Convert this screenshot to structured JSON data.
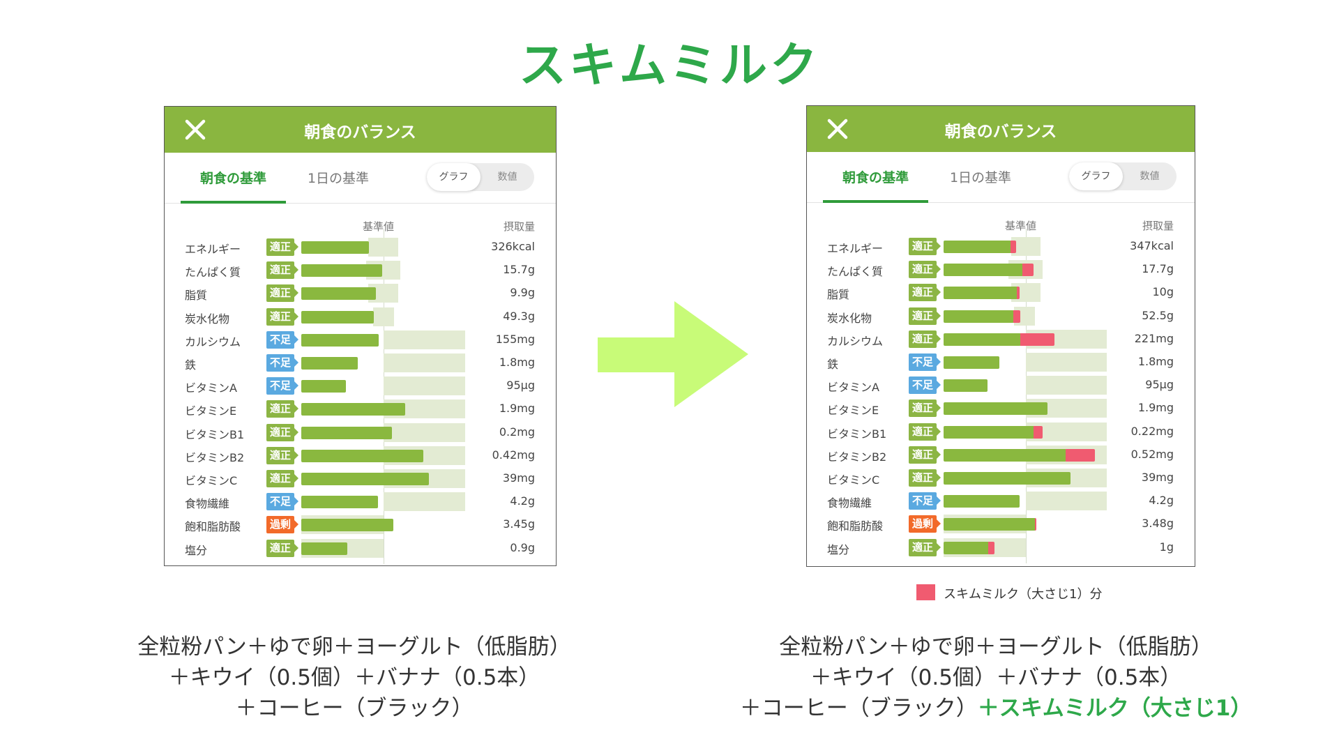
{
  "title": "スキムミルク",
  "colors": {
    "accent": "#2ea84a",
    "header": "#8ab640",
    "bar": "#8ab83f",
    "added": "#f05b70",
    "ok": "#8cb544",
    "low": "#5aa9e0",
    "high": "#f26a2a",
    "arrow": "#c8fb78"
  },
  "panels": [
    {
      "header_title": "朝食のバランス",
      "tabs": [
        "朝食の基準",
        "1日の基準"
      ],
      "toggle": [
        "グラフ",
        "数値"
      ],
      "col_standard": "基準値",
      "col_intake": "摂取量",
      "rows": [
        {
          "label": "エネルギー",
          "status": "適正",
          "kind": "ok",
          "value": "326kcal",
          "pct": 82,
          "added": 0,
          "range": [
            81,
            118
          ]
        },
        {
          "label": "たんぱく質",
          "status": "適正",
          "kind": "ok",
          "value": "15.7g",
          "pct": 98,
          "added": 0,
          "range": [
            79,
            120
          ]
        },
        {
          "label": "脂質",
          "status": "適正",
          "kind": "ok",
          "value": "9.9g",
          "pct": 91,
          "added": 0,
          "range": [
            81,
            118
          ]
        },
        {
          "label": "炭水化物",
          "status": "適正",
          "kind": "ok",
          "value": "49.3g",
          "pct": 88,
          "added": 0,
          "range": [
            87,
            113
          ]
        },
        {
          "label": "カルシウム",
          "status": "不足",
          "kind": "low",
          "value": "155mg",
          "pct": 94,
          "added": 0,
          "range": [
            100,
            199
          ]
        },
        {
          "label": "鉄",
          "status": "不足",
          "kind": "low",
          "value": "1.8mg",
          "pct": 69,
          "added": 0,
          "range": [
            100,
            199
          ]
        },
        {
          "label": "ビタミンA",
          "status": "不足",
          "kind": "low",
          "value": "95μg",
          "pct": 54,
          "added": 0,
          "range": [
            100,
            199
          ]
        },
        {
          "label": "ビタミンE",
          "status": "適正",
          "kind": "ok",
          "value": "1.9mg",
          "pct": 126,
          "added": 0,
          "range": [
            100,
            199
          ]
        },
        {
          "label": "ビタミンB1",
          "status": "適正",
          "kind": "ok",
          "value": "0.2mg",
          "pct": 110,
          "added": 0,
          "range": [
            100,
            199
          ]
        },
        {
          "label": "ビタミンB2",
          "status": "適正",
          "kind": "ok",
          "value": "0.42mg",
          "pct": 148,
          "added": 0,
          "range": [
            100,
            199
          ]
        },
        {
          "label": "ビタミンC",
          "status": "適正",
          "kind": "ok",
          "value": "39mg",
          "pct": 155,
          "added": 0,
          "range": [
            100,
            199
          ]
        },
        {
          "label": "食物繊維",
          "status": "不足",
          "kind": "low",
          "value": "4.2g",
          "pct": 93,
          "added": 0,
          "range": [
            100,
            199
          ]
        },
        {
          "label": "飽和脂肪酸",
          "status": "過剰",
          "kind": "high",
          "value": "3.45g",
          "pct": 112,
          "added": 0,
          "range": [
            0,
            100
          ]
        },
        {
          "label": "塩分",
          "status": "適正",
          "kind": "ok",
          "value": "0.9g",
          "pct": 56,
          "added": 0,
          "range": [
            0,
            100
          ]
        }
      ]
    },
    {
      "header_title": "朝食のバランス",
      "tabs": [
        "朝食の基準",
        "1日の基準"
      ],
      "toggle": [
        "グラフ",
        "数値"
      ],
      "col_standard": "基準値",
      "col_intake": "摂取量",
      "rows": [
        {
          "label": "エネルギー",
          "status": "適正",
          "kind": "ok",
          "value": "347kcal",
          "pct": 82,
          "added": 6,
          "range": [
            82,
            118
          ]
        },
        {
          "label": "たんぱく質",
          "status": "適正",
          "kind": "ok",
          "value": "17.7g",
          "pct": 97,
          "added": 12,
          "range": [
            79,
            120
          ]
        },
        {
          "label": "脂質",
          "status": "適正",
          "kind": "ok",
          "value": "10g",
          "pct": 90,
          "added": 2,
          "range": [
            82,
            118
          ]
        },
        {
          "label": "炭水化物",
          "status": "適正",
          "kind": "ok",
          "value": "52.5g",
          "pct": 86,
          "added": 7,
          "range": [
            86,
            111
          ]
        },
        {
          "label": "カルシウム",
          "status": "適正",
          "kind": "ok",
          "value": "221mg",
          "pct": 94,
          "added": 41,
          "range": [
            100,
            198
          ]
        },
        {
          "label": "鉄",
          "status": "不足",
          "kind": "low",
          "value": "1.8mg",
          "pct": 68,
          "added": 0,
          "range": [
            100,
            198
          ]
        },
        {
          "label": "ビタミンA",
          "status": "不足",
          "kind": "low",
          "value": "95μg",
          "pct": 53,
          "added": 0,
          "range": [
            100,
            198
          ]
        },
        {
          "label": "ビタミンE",
          "status": "適正",
          "kind": "ok",
          "value": "1.9mg",
          "pct": 126,
          "added": 0,
          "range": [
            100,
            198
          ]
        },
        {
          "label": "ビタミンB1",
          "status": "適正",
          "kind": "ok",
          "value": "0.22mg",
          "pct": 110,
          "added": 10,
          "range": [
            100,
            198
          ]
        },
        {
          "label": "ビタミンB2",
          "status": "適正",
          "kind": "ok",
          "value": "0.52mg",
          "pct": 149,
          "added": 35,
          "range": [
            100,
            198
          ]
        },
        {
          "label": "ビタミンC",
          "status": "適正",
          "kind": "ok",
          "value": "39mg",
          "pct": 154,
          "added": 0,
          "range": [
            100,
            198
          ]
        },
        {
          "label": "食物繊維",
          "status": "不足",
          "kind": "low",
          "value": "4.2g",
          "pct": 92,
          "added": 0,
          "range": [
            100,
            198
          ]
        },
        {
          "label": "飽和脂肪酸",
          "status": "過剰",
          "kind": "high",
          "value": "3.48g",
          "pct": 112,
          "added": 1,
          "range": [
            0,
            100
          ]
        },
        {
          "label": "塩分",
          "status": "適正",
          "kind": "ok",
          "value": "1g",
          "pct": 55,
          "added": 7,
          "range": [
            0,
            100
          ]
        }
      ]
    }
  ],
  "legend": {
    "label": "スキムミルク（大さじ1）分"
  },
  "captions": {
    "left": [
      "全粒粉パン＋ゆで卵＋ヨーグルト（低脂肪）",
      "＋キウイ（0.5個）＋バナナ（0.5本）",
      "＋コーヒー（ブラック）"
    ],
    "right": [
      "全粒粉パン＋ゆで卵＋ヨーグルト（低脂肪）",
      "＋キウイ（0.5個）＋バナナ（0.5本）",
      "＋コーヒー（ブラック）"
    ],
    "right_highlight": "＋スキムミルク（大さじ1）"
  }
}
